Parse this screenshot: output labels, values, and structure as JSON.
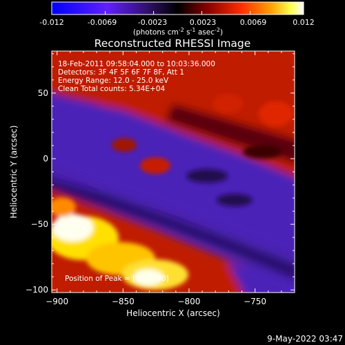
{
  "colorbar": {
    "ticks": [
      "-0.012",
      "-0.0069",
      "-0.0023",
      "0.0023",
      "0.0069",
      "0.012"
    ],
    "unit_main": "(photons cm",
    "unit_sup1": "-2",
    "unit_mid": " s",
    "unit_sup2": "-1",
    "unit_mid2": " asec",
    "unit_sup3": "-2",
    "unit_end": ")"
  },
  "plot": {
    "title": "Reconstructed RHESSI Image",
    "info_lines": [
      "18-Feb-2011 09:58:04.000 to 10:03:36.000",
      "Detectors: 3F 4F 5F 6F 7F 8F, Att 1",
      "Energy Range: 12.0 - 25.0 keV",
      "Clean    Total counts: 5.34E+04"
    ],
    "peak_label": "Position of Peak = [-827,-90]",
    "footer_date": "9-May-2022 03:47"
  },
  "chart_data": {
    "type": "heatmap",
    "title": "Reconstructed RHESSI Image",
    "xlabel": "Heliocentric X (arcsec)",
    "ylabel": "Heliocentric Y (arcsec)",
    "xlim": [
      -904,
      -720
    ],
    "ylim": [
      -102,
      82
    ],
    "x_ticks": [
      -900,
      -850,
      -800,
      -750
    ],
    "y_ticks": [
      -100,
      -50,
      0,
      50
    ],
    "x_tick_labels": [
      "−900",
      "−850",
      "−800",
      "−750"
    ],
    "y_tick_labels": [
      "−100",
      "−50",
      "0",
      "50"
    ],
    "colorbar_range": [
      -0.012,
      0.012
    ],
    "colormap": [
      "#0000ff",
      "#7a20ff",
      "#3b0a6e",
      "#000000",
      "#7a0000",
      "#ff2000",
      "#ff9900",
      "#ffff40",
      "#ffffff"
    ],
    "peak_position": [
      -827,
      -90
    ],
    "cmap_colors": {
      "violet": "#5a28c8",
      "dark_violet": "#3a1690",
      "red": "#c81e00",
      "dark_red": "#500000",
      "yellow": "#ffd400",
      "white": "#fffff0"
    }
  }
}
